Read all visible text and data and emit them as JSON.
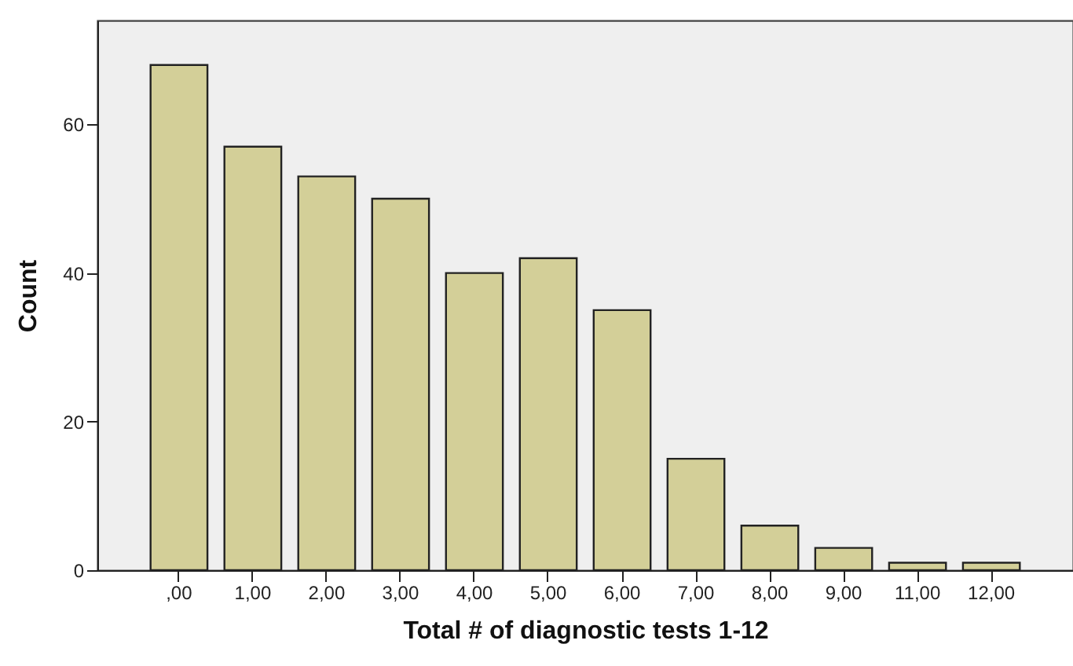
{
  "chart_data": {
    "type": "bar",
    "xlabel": "Total # of diagnostic tests 1-12",
    "ylabel": "Count",
    "categories": [
      ",00",
      "1,00",
      "2,00",
      "3,00",
      "4,00",
      "5,00",
      "6,00",
      "7,00",
      "8,00",
      "9,00",
      "11,00",
      "12,00"
    ],
    "values": [
      68,
      57,
      53,
      50,
      40,
      42,
      35,
      15,
      6,
      3,
      1,
      1
    ],
    "color": "#d3cf98",
    "ylim": [
      0,
      74
    ],
    "yticks": [
      0,
      20,
      40,
      60
    ],
    "grid": false
  }
}
